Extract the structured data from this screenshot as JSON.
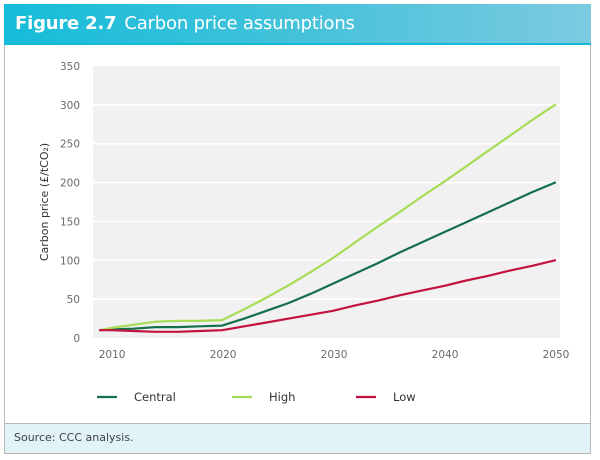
{
  "header": {
    "figure_number": "Figure 2.7",
    "title": "Carbon price assumptions"
  },
  "footer": {
    "source": "Source: CCC analysis."
  },
  "chart_data": {
    "type": "line",
    "title": "Carbon price assumptions",
    "xlabel": "",
    "ylabel": "Carbon price (£/tCO₂)",
    "xlim": [
      2009,
      2050
    ],
    "ylim": [
      0,
      350
    ],
    "xticks": [
      2010,
      2020,
      2030,
      2040,
      2050
    ],
    "yticks": [
      0,
      50,
      100,
      150,
      200,
      250,
      300,
      350
    ],
    "grid": true,
    "legend_position": "bottom",
    "x": [
      2009,
      2010,
      2012,
      2014,
      2016,
      2018,
      2020,
      2022,
      2024,
      2026,
      2028,
      2030,
      2032,
      2034,
      2036,
      2038,
      2040,
      2042,
      2044,
      2046,
      2048,
      2050
    ],
    "series": [
      {
        "name": "Central",
        "color": "#14704a",
        "values": [
          10,
          11,
          12,
          14,
          14,
          15,
          16,
          25,
          35,
          45,
          57,
          70,
          83,
          96,
          110,
          123,
          136,
          149,
          162,
          175,
          188,
          200
        ]
      },
      {
        "name": "High",
        "color": "#a6dc56",
        "values": [
          10,
          13,
          17,
          21,
          22,
          22,
          23,
          37,
          52,
          68,
          85,
          103,
          123,
          143,
          162,
          182,
          201,
          221,
          241,
          261,
          281,
          300
        ]
      },
      {
        "name": "Low",
        "color": "#c4123f",
        "values": [
          10,
          10,
          9,
          8,
          8,
          9,
          10,
          15,
          20,
          25,
          30,
          35,
          42,
          48,
          55,
          61,
          67,
          74,
          80,
          87,
          93,
          100
        ]
      }
    ]
  }
}
